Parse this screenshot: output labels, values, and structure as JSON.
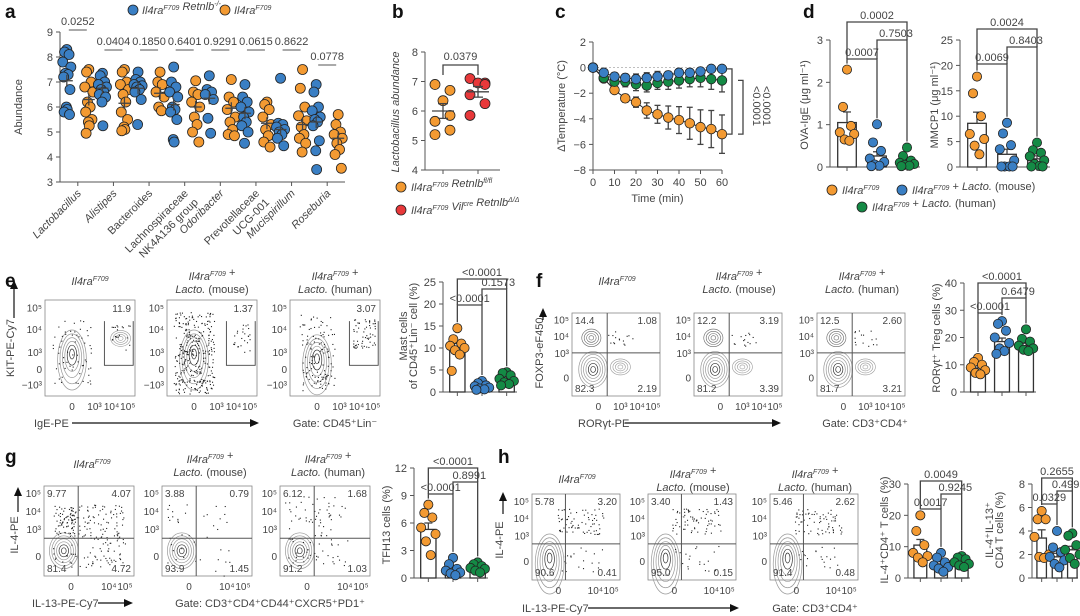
{
  "colors": {
    "orange": "#f39a32",
    "blue": "#3a7fc4",
    "green": "#148a45",
    "red": "#e8383a",
    "axis": "#555555"
  },
  "panel_labels": [
    "a",
    "b",
    "c",
    "d",
    "e",
    "f",
    "g",
    "h"
  ],
  "chart_data": [
    {
      "id": "a",
      "type": "scatter",
      "title": "",
      "ylabel": "Abundance",
      "ylim": [
        3,
        9
      ],
      "yticks": [
        3,
        4,
        5,
        6,
        7,
        8,
        9
      ],
      "legend": [
        {
          "name": "Il4ra^F709 Retnlb^-/-",
          "color": "#3a7fc4"
        },
        {
          "name": "Il4ra^F709",
          "color": "#f39a32"
        }
      ],
      "legend_position": "top",
      "categories": [
        "Lactobacillus",
        "Alistipes",
        "Bacteroides",
        "Lachnospiraceae NK4A136 group",
        "Odoribacter",
        "Prevotellaceae UCG-001",
        "Mucispirillum",
        "Roseburia"
      ],
      "pvalues": [
        "0.0252",
        "0.0404",
        "0.1850",
        "0.6401",
        "0.9291",
        "0.0615",
        "0.8622",
        "0.0778"
      ],
      "series": [
        {
          "name": "Il4ra^F709 Retnlb^-/-",
          "means": [
            7.05,
            6.75,
            6.75,
            6.1,
            6.35,
            5.75,
            5.1,
            5.4
          ],
          "points": [
            [
              8.3,
              8.2,
              8.1,
              7.8,
              7.6,
              7.35,
              7.3,
              7.2,
              6.7,
              6.0,
              5.9,
              5.8,
              5.7
            ],
            [
              7.35,
              7.25,
              7.0,
              6.9,
              6.8,
              6.7,
              6.6,
              6.5,
              6.4,
              6.2,
              5.25
            ],
            [
              7.4,
              7.1,
              7.0,
              6.9,
              6.85,
              6.8,
              6.7,
              6.6,
              6.3,
              5.3
            ],
            [
              7.6,
              7.0,
              6.8,
              6.6,
              6.4,
              6.0,
              5.9,
              5.8,
              5.5,
              4.7,
              4.6
            ],
            [
              7.25,
              6.7,
              6.6,
              6.5,
              6.3,
              5.55,
              4.95
            ],
            [
              6.9,
              6.4,
              6.2,
              6.0,
              5.8,
              5.6,
              5.4,
              5.25,
              5.0,
              4.55
            ],
            [
              7.15,
              5.35,
              5.3,
              5.2,
              5.1,
              5.0,
              4.9,
              4.75,
              4.45
            ],
            [
              6.9,
              6.6,
              6.0,
              5.85,
              5.6,
              5.5,
              5.4,
              5.25,
              4.65,
              4.25,
              3.5
            ]
          ]
        },
        {
          "name": "Il4ra^F709",
          "means": [
            6.3,
            6.15,
            6.55,
            6.0,
            5.95,
            5.35,
            5.3,
            4.75
          ],
          "points": [
            [
              7.5,
              7.4,
              7.0,
              6.8,
              6.6,
              6.2,
              6.0,
              5.8,
              5.5,
              5.4,
              5.25,
              4.95
            ],
            [
              7.5,
              7.4,
              7.0,
              6.9,
              6.7,
              6.5,
              6.2,
              5.8,
              5.5,
              5.2,
              5.1,
              5.05
            ],
            [
              7.4,
              7.0,
              6.9,
              6.6,
              6.4,
              6.0,
              5.85
            ],
            [
              7.05,
              6.6,
              6.5,
              6.2,
              6.0,
              5.6,
              5.3,
              5.0,
              4.6
            ],
            [
              7.1,
              6.4,
              6.2,
              5.9,
              5.6,
              5.4,
              5.1,
              4.9,
              4.85
            ],
            [
              6.2,
              6.1,
              5.9,
              5.6,
              5.3,
              5.1,
              4.85,
              4.6,
              4.4
            ],
            [
              7.5,
              6.75,
              6.0,
              5.65,
              5.45,
              5.2,
              4.9,
              4.75,
              4.55,
              4.2
            ],
            [
              5.7,
              5.3,
              5.0,
              4.9,
              4.75,
              4.55,
              4.3,
              4.1,
              3.55
            ]
          ]
        }
      ]
    },
    {
      "id": "b",
      "type": "scatter",
      "ylabel": "Lactobacillus abundance",
      "ylim": [
        4,
        8
      ],
      "yticks": [
        4,
        5,
        6,
        7,
        8
      ],
      "pvalue": "0.0379",
      "legend": [
        {
          "name": "Il4ra^F709 Retnlb^fl/fl",
          "color": "#f39a32"
        },
        {
          "name": "Il4ra^F709 Vil^cre Retnlb^Δ/Δ",
          "color": "#e8383a"
        }
      ],
      "series": [
        {
          "name": "Il4ra^F709 Retnlb^fl/fl",
          "mean": 6.0,
          "sem": 0.25,
          "points": [
            6.9,
            6.7,
            6.35,
            5.85,
            5.65,
            5.35,
            5.2
          ]
        },
        {
          "name": "Il4ra^F709 Vil^cre Retnlb^Δ/Δ",
          "mean": 6.65,
          "sem": 0.18,
          "points": [
            7.1,
            6.95,
            6.95,
            6.9,
            6.55,
            6.25,
            5.85
          ]
        }
      ]
    },
    {
      "id": "c",
      "type": "line",
      "xlabel": "Time (min)",
      "ylabel": "ΔTemperature (°C)",
      "xlim": [
        0,
        60
      ],
      "ylim": [
        -8,
        2
      ],
      "xticks": [
        0,
        10,
        20,
        30,
        40,
        50,
        60
      ],
      "yticks": [
        -8,
        -6,
        -4,
        -2,
        0,
        2
      ],
      "x": [
        0,
        5,
        10,
        15,
        20,
        25,
        30,
        35,
        40,
        45,
        50,
        55,
        60
      ],
      "pvalues": [
        "<0.0001",
        "<0.0001"
      ],
      "series": [
        {
          "name": "Il4ra^F709 + Lacto. (mouse)",
          "color": "blue",
          "values": [
            0,
            -0.4,
            -0.7,
            -0.8,
            -0.9,
            -0.8,
            -0.7,
            -0.6,
            -0.4,
            -0.4,
            -0.3,
            -0.1,
            -0.1
          ],
          "err": [
            0,
            0.2,
            0.3,
            0.3,
            0.4,
            0.4,
            0.4,
            0.3,
            0.3,
            0.3,
            0.2,
            0.2,
            0.2
          ]
        },
        {
          "name": "Il4ra^F709 + Lacto. (human)",
          "color": "green",
          "values": [
            0,
            -0.8,
            -1.1,
            -1.1,
            -1.3,
            -1.4,
            -1.2,
            -1.1,
            -1.0,
            -0.9,
            -0.8,
            -0.9,
            -1.0
          ],
          "err": [
            0,
            0.2,
            0.3,
            0.4,
            0.5,
            0.5,
            0.5,
            0.6,
            0.6,
            0.6,
            0.7,
            0.8,
            0.9
          ]
        },
        {
          "name": "Il4ra^F709",
          "color": "orange",
          "values": [
            0,
            -0.85,
            -1.75,
            -2.4,
            -2.7,
            -3.35,
            -3.65,
            -3.9,
            -4.1,
            -4.35,
            -4.65,
            -4.8,
            -5.2
          ],
          "err": [
            0,
            0.1,
            0.2,
            0.3,
            0.4,
            0.6,
            0.7,
            0.9,
            1.05,
            1.25,
            1.35,
            1.45,
            1.5
          ]
        }
      ]
    },
    {
      "id": "d1",
      "type": "bar",
      "ylabel": "OVA-IgE (μg ml⁻¹)",
      "ylim": [
        0,
        3
      ],
      "yticks": [
        0,
        1,
        2,
        3
      ],
      "categories": [
        "Il4ra^F709",
        "Il4ra^F709 + Lacto. (mouse)",
        "Il4ra^F709 + Lacto. (human)"
      ],
      "values": [
        1.05,
        0.26,
        0.12
      ],
      "sem": [
        0.25,
        0.1,
        0.05
      ],
      "points": [
        [
          2.3,
          1.42,
          0.97,
          0.82,
          0.78,
          0.65,
          0.62
        ],
        [
          1.01,
          0.58,
          0.38,
          0.2,
          0.12,
          0.06,
          0.03,
          0.02
        ],
        [
          0.46,
          0.26,
          0.15,
          0.1,
          0.07,
          0.05,
          0.03,
          0.02
        ]
      ],
      "comparisons": [
        {
          "a": 0,
          "b": 1,
          "p": "0.0007"
        },
        {
          "a": 1,
          "b": 2,
          "p": "0.7503"
        },
        {
          "a": 0,
          "b": 2,
          "p": "0.0002"
        }
      ]
    },
    {
      "id": "d2",
      "type": "bar",
      "ylabel": "MMCP1 (μg ml⁻¹)",
      "ylim": [
        0,
        25
      ],
      "yticks": [
        0,
        5,
        10,
        15,
        20,
        25
      ],
      "categories": [
        "Il4ra^F709",
        "Il4ra^F709 + Lacto. (mouse)",
        "Il4ra^F709 + Lacto. (human)"
      ],
      "values": [
        8.6,
        2.5,
        1.6
      ],
      "sem": [
        2.2,
        1.0,
        0.6
      ],
      "points": [
        [
          17.8,
          14.5,
          10,
          6.5,
          5.5,
          4.2,
          2.5
        ],
        [
          8.7,
          6.6,
          4.3,
          3.5,
          1.3,
          0.1,
          0.1,
          0.1,
          0.1
        ],
        [
          4.8,
          3.3,
          2.8,
          2.1,
          1.3,
          0.6,
          0.2,
          0.1,
          0.1
        ]
      ],
      "comparisons": [
        {
          "a": 0,
          "b": 1,
          "p": "0.0069"
        },
        {
          "a": 1,
          "b": 2,
          "p": "0.8403"
        },
        {
          "a": 0,
          "b": 2,
          "p": "0.0024"
        }
      ],
      "legend": [
        {
          "name": "Il4ra^F709",
          "color": "#f39a32"
        },
        {
          "name": "Il4ra^F709 + Lacto. (mouse)",
          "color": "#3a7fc4"
        },
        {
          "name": "Il4ra^F709 + Lacto. (human)",
          "color": "#148a45"
        }
      ]
    },
    {
      "id": "e-bar",
      "type": "bar",
      "ylabel": "Mast cells of CD45⁺Lin⁻ cell (%)",
      "ylim": [
        0,
        25
      ],
      "yticks": [
        0,
        5,
        10,
        15,
        20,
        25
      ],
      "values": [
        10.0,
        1.5,
        2.8
      ],
      "sem": [
        1.0,
        0.3,
        0.4
      ],
      "points": [
        [
          14.5,
          12,
          11,
          10.5,
          10,
          9.5,
          8.5,
          4.8
        ],
        [
          2.5,
          2.0,
          1.5,
          1.3,
          1.0,
          0.8,
          0.6,
          0.5
        ],
        [
          4.5,
          4.3,
          3.8,
          3.0,
          2.5,
          2.2,
          1.8,
          1.5
        ]
      ],
      "comparisons": [
        {
          "a": 0,
          "b": 1,
          "p": "<0.0001"
        },
        {
          "a": 1,
          "b": 2,
          "p": "0.1573"
        },
        {
          "a": 0,
          "b": 2,
          "p": "<0.0001"
        }
      ]
    },
    {
      "id": "f-bar",
      "type": "bar",
      "ylabel": "RORγt⁺ Treg cells (%)",
      "ylim": [
        0,
        40
      ],
      "yticks": [
        0,
        10,
        20,
        30,
        40
      ],
      "values": [
        8.8,
        18.5,
        17.0
      ],
      "sem": [
        0.8,
        1.3,
        0.9
      ],
      "points": [
        [
          12.5,
          11,
          10,
          9,
          8,
          7,
          6.5
        ],
        [
          26,
          25,
          22.5,
          20,
          18,
          16,
          15,
          14
        ],
        [
          23,
          19.5,
          18.5,
          17,
          16,
          15.5,
          15
        ]
      ],
      "comparisons": [
        {
          "a": 0,
          "b": 1,
          "p": "<0.0001"
        },
        {
          "a": 1,
          "b": 2,
          "p": "0.6479"
        },
        {
          "a": 0,
          "b": 2,
          "p": "<0.0001"
        }
      ]
    },
    {
      "id": "g-bar",
      "type": "bar",
      "ylabel": "TFH13 cells (%)",
      "ylim": [
        0,
        12
      ],
      "yticks": [
        0,
        3,
        6,
        9,
        12
      ],
      "values": [
        5.3,
        0.95,
        1.1
      ],
      "sem": [
        0.7,
        0.2,
        0.15
      ],
      "points": [
        [
          8,
          7.1,
          6.6,
          5.5,
          4.8,
          4.0,
          2.5
        ],
        [
          2.2,
          1.5,
          1.0,
          0.8,
          0.6,
          0.5,
          0.3
        ],
        [
          1.7,
          1.5,
          1.3,
          1.1,
          1.0,
          0.8,
          0.6
        ]
      ],
      "comparisons": [
        {
          "a": 0,
          "b": 1,
          "p": "<0.0001"
        },
        {
          "a": 1,
          "b": 2,
          "p": "0.8991"
        },
        {
          "a": 0,
          "b": 2,
          "p": "<0.0001"
        }
      ]
    },
    {
      "id": "h-bar1",
      "type": "bar",
      "ylabel": "IL-4⁺CD4⁺ T cells (%)",
      "ylim": [
        0,
        30
      ],
      "yticks": [
        0,
        10,
        20,
        30
      ],
      "values": [
        10.5,
        4.5,
        5.2
      ],
      "sem": [
        1.8,
        0.7,
        0.5
      ],
      "points": [
        [
          20,
          15,
          10.5,
          8,
          7,
          6.5,
          5
        ],
        [
          8,
          6.5,
          5,
          4,
          3.5,
          3,
          2
        ],
        [
          7,
          6.5,
          6,
          5,
          4.5,
          4,
          3.5
        ]
      ],
      "comparisons": [
        {
          "a": 0,
          "b": 1,
          "p": "0.0017"
        },
        {
          "a": 1,
          "b": 2,
          "p": "0.9245"
        },
        {
          "a": 0,
          "b": 2,
          "p": "0.0049"
        }
      ]
    },
    {
      "id": "h-bar2",
      "type": "bar",
      "ylabel": "IL-4⁺IL-13⁺ CD4 T cells (%)",
      "ylim": [
        0,
        8
      ],
      "yticks": [
        0,
        2,
        4,
        6,
        8
      ],
      "values": [
        3.4,
        1.8,
        2.4
      ],
      "sem": [
        0.7,
        0.3,
        0.3
      ],
      "points": [
        [
          5.7,
          5.0,
          5.0,
          3.5,
          2.0,
          1.8,
          1.7
        ],
        [
          4.0,
          2.6,
          2.2,
          1.8,
          1.5,
          1.2,
          0.9
        ],
        [
          3.8,
          3.6,
          2.8,
          2.4,
          2.0,
          1.7,
          1.2
        ]
      ],
      "comparisons": [
        {
          "a": 0,
          "b": 1,
          "p": "0.0329"
        },
        {
          "a": 1,
          "b": 2,
          "p": "0.4995"
        },
        {
          "a": 0,
          "b": 2,
          "p": "0.2655"
        }
      ]
    }
  ],
  "flow": {
    "e": {
      "ylabel": "KIT-PE-Cy7",
      "xlabel": "IgE-PE",
      "gate": "Gate: CD45⁺Lin⁻",
      "titles": [
        "Il4ra^F709",
        "Il4ra^F709 + Lacto. (mouse)",
        "Il4ra^F709 + Lacto. (human)"
      ],
      "gate_values": [
        "11.9",
        "1.37",
        "3.07"
      ],
      "yticks": [
        "10⁵",
        "10⁴",
        "10³",
        "0",
        "−10³"
      ],
      "xticks": [
        "0",
        "10³",
        "10⁴",
        "10⁵"
      ]
    },
    "f": {
      "ylabel": "FOXP3-eF450",
      "xlabel": "RORγt-PE",
      "gate": "Gate: CD3⁺CD4⁺",
      "titles": [
        "Il4ra^F709",
        "Il4ra^F709 + Lacto. (mouse)",
        "Il4ra^F709 + Lacto. (human)"
      ],
      "quadrants": [
        [
          "14.4",
          "1.08",
          "82.3",
          "2.19"
        ],
        [
          "12.2",
          "3.19",
          "81.2",
          "3.39"
        ],
        [
          "12.5",
          "2.60",
          "81.7",
          "3.21"
        ]
      ],
      "yticks": [
        "10⁵",
        "10⁴",
        "10³",
        "0"
      ],
      "xticks": [
        "0",
        "10³",
        "10⁴",
        "10⁵"
      ]
    },
    "g": {
      "ylabel": "IL-4-PE",
      "xlabel": "IL-13-PE-Cy7",
      "gate": "Gate: CD3⁺CD4⁺CD44⁺CXCR5⁺PD1⁺",
      "titles": [
        "Il4ra^F709",
        "Il4ra^F709 + Lacto. (mouse)",
        "Il4ra^F709 + Lacto. (human)"
      ],
      "quadrants": [
        [
          "9.77",
          "4.07",
          "81.4",
          "4.72"
        ],
        [
          "3.88",
          "0.79",
          "93.9",
          "1.45"
        ],
        [
          "6.12",
          "1.68",
          "91.2",
          "1.03"
        ]
      ],
      "yticks": [
        "10⁵",
        "10⁴",
        "10³",
        "0"
      ],
      "xticks": [
        "0",
        "10⁴",
        "10⁵"
      ]
    },
    "h": {
      "ylabel": "IL-4-PE",
      "xlabel": "IL-13-PE-Cy7",
      "gate": "Gate: CD3⁺CD4⁺",
      "titles": [
        "Il4ra^F709",
        "Il4ra^F709 + Lacto. (mouse)",
        "Il4ra^F709 + Lacto. (human)"
      ],
      "quadrants": [
        [
          "5.78",
          "3.20",
          "90.6",
          "0.41"
        ],
        [
          "3.40",
          "1.43",
          "95.0",
          "0.15"
        ],
        [
          "5.46",
          "2.62",
          "91.4",
          "0.48"
        ]
      ],
      "yticks": [
        "10⁵",
        "10⁴",
        "10³",
        "0"
      ],
      "xticks": [
        "0",
        "10⁴",
        "10⁵"
      ]
    }
  }
}
